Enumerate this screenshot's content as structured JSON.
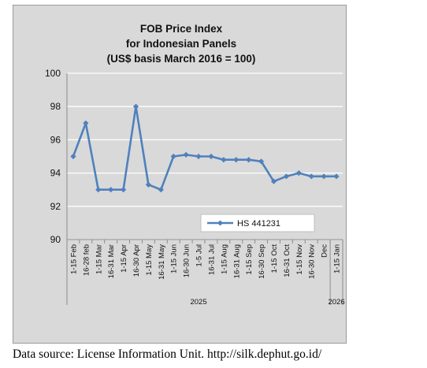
{
  "colors": {
    "series": "#4f81bd",
    "plot_bg": "#d9d9d9",
    "grid": "#ffffff",
    "frame": "#9a9a9a"
  },
  "source_note": "Data source: License Information Unit. http://silk.dephut.go.id/",
  "chart_data": {
    "type": "line",
    "title_lines": [
      "FOB Price Index",
      "for Indonesian Panels",
      "(US$ basis March 2016 = 100)"
    ],
    "xlabel": "",
    "ylabel": "",
    "ylim": [
      90,
      100
    ],
    "yticks": [
      90,
      92,
      94,
      96,
      98,
      100
    ],
    "grid": true,
    "legend_position": "inside-lower-right",
    "categories": [
      "1-15 Feb",
      "16-28 feb",
      "1-15 Mar",
      "16-31 Mar",
      "1-15 Apr",
      "16-30 Apr",
      "1-15 May",
      "16-31 May",
      "1-15 Jun",
      "16-30 Jun",
      "1-5 Jul",
      "16-31 Jul",
      "1-15 Aug",
      "16-31 Aug",
      "1-15 Sep",
      "16-30 Sep",
      "1-15 Oct",
      "16-31 Oct",
      "1-15 Nov",
      "16-30 Nov",
      "Dec",
      "1-15 Jan"
    ],
    "year_groups": [
      {
        "label": "2025",
        "start": 0,
        "end": 20
      },
      {
        "label": "2026",
        "start": 21,
        "end": 21
      }
    ],
    "series": [
      {
        "name": "HS 441231",
        "values": [
          95.0,
          97.0,
          93.0,
          93.0,
          93.0,
          98.0,
          93.3,
          93.0,
          95.0,
          95.1,
          95.0,
          95.0,
          94.8,
          94.8,
          94.8,
          94.7,
          93.5,
          93.8,
          94.0,
          93.8,
          93.8,
          93.8
        ]
      }
    ]
  }
}
